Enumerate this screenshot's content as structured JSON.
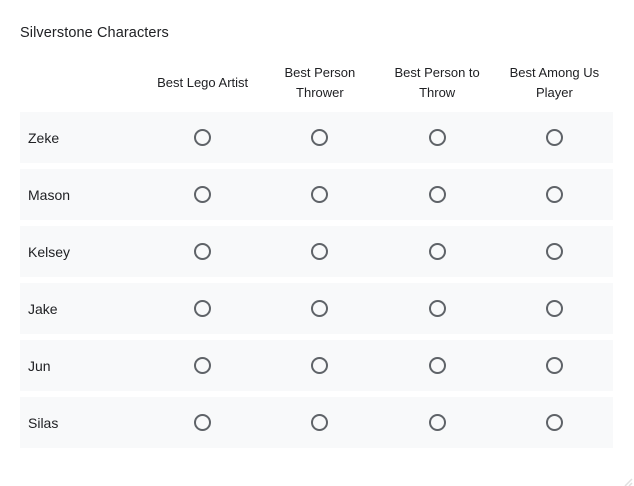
{
  "page": {
    "title": "Silverstone Characters"
  },
  "grid": {
    "columns": [
      "Best Lego Artist",
      "Best Person Thrower",
      "Best Person to Throw",
      "Best Among Us Player"
    ],
    "rows": [
      "Zeke",
      "Mason",
      "Kelsey",
      "Jake",
      "Jun",
      "Silas"
    ],
    "selection_state": "all unselected"
  },
  "colors": {
    "background": "#ffffff",
    "row_background": "#f8f9fa",
    "radio_border": "#5f6368",
    "text": "#202124",
    "resize_handle": "#e0e0e0"
  }
}
